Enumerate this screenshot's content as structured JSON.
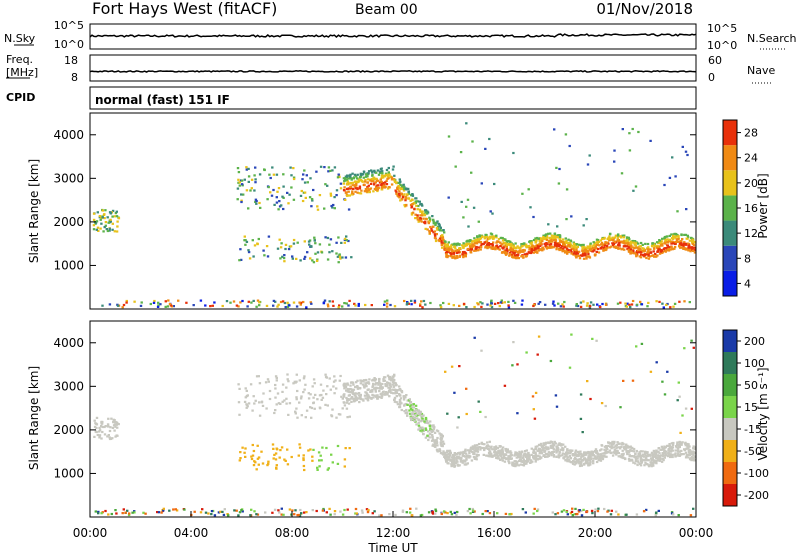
{
  "header": {
    "station": "Fort Hays West (fitACF)",
    "beam": "Beam 00",
    "date": "01/Nov/2018"
  },
  "noise_panel": {
    "left_label": "N.Sky",
    "right_label": "N.Search",
    "left_ticks": [
      "10^5",
      "10^0"
    ],
    "right_ticks": [
      "10^5",
      "10^0"
    ]
  },
  "freq_panel": {
    "left_label_1": "Freq.",
    "left_label_2": "[MHz]",
    "right_label": "Nave",
    "left_ticks": [
      "18",
      "8"
    ],
    "right_ticks": [
      "60",
      "0"
    ]
  },
  "cpid_panel": {
    "label": "CPID",
    "mode": "normal (fast) 151 IF"
  },
  "chart_data": [
    {
      "type": "heatmap",
      "name": "power",
      "ylabel": "Slant Range [km]",
      "xlabel": "",
      "x_range_hours": [
        0,
        24
      ],
      "ylim": [
        0,
        4500
      ],
      "yticks": [
        1000,
        2000,
        3000,
        4000
      ],
      "colorbar": {
        "label": "Power [dB]",
        "ticks": [
          "4",
          "8",
          "12",
          "16",
          "20",
          "24",
          "28"
        ],
        "colors": [
          "#0a1ee6",
          "#2a46b8",
          "#3b8a7a",
          "#5bb24a",
          "#e8c21a",
          "#f08a14",
          "#e8300a"
        ]
      }
    },
    {
      "type": "heatmap",
      "name": "velocity",
      "ylabel": "Slant Range [km]",
      "xlabel": "Time UT",
      "x_range_hours": [
        0,
        24
      ],
      "ylim": [
        0,
        4500
      ],
      "yticks": [
        1000,
        2000,
        3000,
        4000
      ],
      "xticks": [
        "00:00",
        "04:00",
        "08:00",
        "12:00",
        "16:00",
        "20:00",
        "00:00"
      ],
      "colorbar": {
        "label": "Velocity [m s⁻¹]",
        "ticks": [
          "200",
          "100",
          "50",
          "15",
          "-15",
          "-50",
          "-100",
          "-200"
        ],
        "colors": [
          "#1a3aa8",
          "#2f7a5a",
          "#4aa83c",
          "#7ad44a",
          "#c8c8c0",
          "#f0b018",
          "#f06a10",
          "#d81a0a"
        ]
      }
    }
  ]
}
